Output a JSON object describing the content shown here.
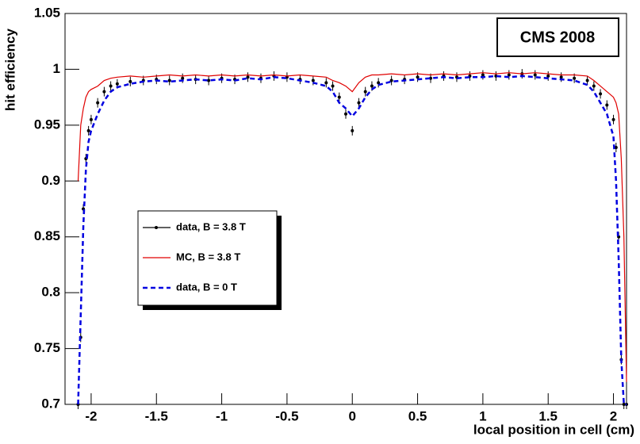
{
  "chart_data": {
    "type": "line",
    "annotation": "CMS 2008",
    "xlabel": "local position in cell (cm)",
    "ylabel": "hit efficiency",
    "xlim": [
      -2.2,
      2.1
    ],
    "xticks": [
      -2,
      -1.5,
      -1,
      -0.5,
      0,
      0.5,
      1,
      1.5,
      2
    ],
    "ylim": [
      0.7,
      1.05
    ],
    "yticks": [
      0.7,
      0.75,
      0.8,
      0.85,
      0.9,
      0.95,
      1,
      1.05
    ],
    "x": [
      -2.1,
      -2.08,
      -2.06,
      -2.04,
      -2.02,
      -2.0,
      -1.95,
      -1.9,
      -1.85,
      -1.8,
      -1.7,
      -1.6,
      -1.5,
      -1.4,
      -1.3,
      -1.2,
      -1.1,
      -1.0,
      -0.9,
      -0.8,
      -0.7,
      -0.6,
      -0.5,
      -0.4,
      -0.3,
      -0.2,
      -0.15,
      -0.1,
      -0.05,
      0,
      0.05,
      0.1,
      0.15,
      0.2,
      0.3,
      0.4,
      0.5,
      0.6,
      0.7,
      0.8,
      0.9,
      1.0,
      1.1,
      1.2,
      1.3,
      1.4,
      1.5,
      1.6,
      1.7,
      1.8,
      1.85,
      1.9,
      1.95,
      2.0,
      2.02,
      2.04,
      2.06,
      2.08,
      2.1
    ],
    "series": [
      {
        "name": "data, B = 3.8 T",
        "color": "#000000",
        "line_style": "markers",
        "values": [
          0.7,
          0.76,
          0.875,
          0.92,
          0.945,
          0.955,
          0.97,
          0.98,
          0.985,
          0.987,
          0.989,
          0.99,
          0.991,
          0.99,
          0.992,
          0.991,
          0.99,
          0.992,
          0.991,
          0.993,
          0.992,
          0.994,
          0.993,
          0.991,
          0.99,
          0.988,
          0.985,
          0.975,
          0.96,
          0.945,
          0.97,
          0.98,
          0.985,
          0.988,
          0.99,
          0.991,
          0.993,
          0.992,
          0.994,
          0.993,
          0.994,
          0.995,
          0.994,
          0.995,
          0.996,
          0.995,
          0.994,
          0.993,
          0.992,
          0.99,
          0.985,
          0.978,
          0.968,
          0.955,
          0.93,
          0.85,
          0.74,
          0.7,
          0.7
        ]
      },
      {
        "name": "MC, B = 3.8 T",
        "color": "#e00000",
        "line_style": "solid",
        "values": [
          0.9,
          0.95,
          0.965,
          0.975,
          0.98,
          0.982,
          0.985,
          0.99,
          0.992,
          0.993,
          0.994,
          0.993,
          0.994,
          0.995,
          0.994,
          0.995,
          0.994,
          0.995,
          0.994,
          0.995,
          0.994,
          0.995,
          0.994,
          0.995,
          0.994,
          0.993,
          0.99,
          0.988,
          0.985,
          0.98,
          0.988,
          0.993,
          0.995,
          0.995,
          0.996,
          0.995,
          0.996,
          0.995,
          0.996,
          0.995,
          0.996,
          0.997,
          0.996,
          0.997,
          0.996,
          0.997,
          0.996,
          0.995,
          0.995,
          0.994,
          0.99,
          0.985,
          0.98,
          0.975,
          0.97,
          0.96,
          0.92,
          0.85,
          0.72
        ]
      },
      {
        "name": "data, B = 0 T",
        "color": "#0000e0",
        "line_style": "dashed",
        "values": [
          0.7,
          0.78,
          0.86,
          0.91,
          0.935,
          0.945,
          0.96,
          0.972,
          0.98,
          0.984,
          0.987,
          0.989,
          0.99,
          0.989,
          0.99,
          0.991,
          0.99,
          0.991,
          0.99,
          0.992,
          0.991,
          0.993,
          0.992,
          0.99,
          0.988,
          0.985,
          0.98,
          0.97,
          0.965,
          0.958,
          0.965,
          0.975,
          0.982,
          0.986,
          0.989,
          0.99,
          0.991,
          0.992,
          0.993,
          0.992,
          0.993,
          0.993,
          0.994,
          0.993,
          0.994,
          0.993,
          0.992,
          0.991,
          0.99,
          0.986,
          0.98,
          0.97,
          0.96,
          0.94,
          0.9,
          0.83,
          0.74,
          0.7,
          0.7
        ]
      }
    ]
  }
}
